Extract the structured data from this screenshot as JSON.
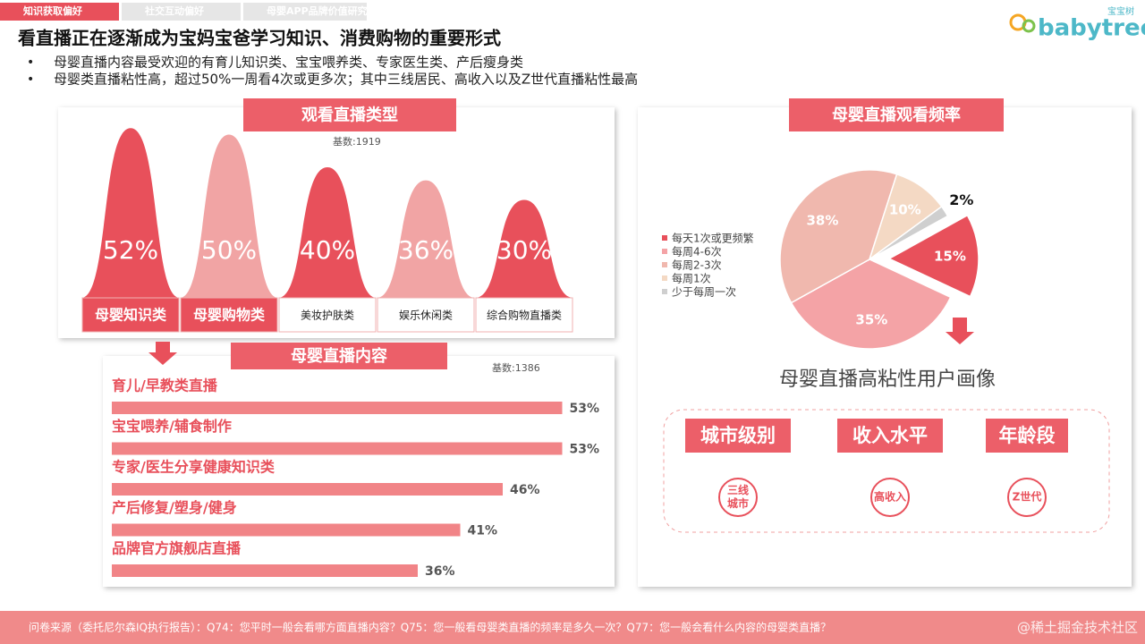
{
  "tabs": [
    "知识获取偏好",
    "社交互动偏好",
    "母婴APP品牌价值研究"
  ],
  "logo": {
    "cn": "宝宝树",
    "en": "babytree"
  },
  "title": "看直播正在逐渐成为宝妈宝爸学习知识、消费购物的重要形式",
  "bullets": [
    "母婴直播内容最受欢迎的有育儿知识类、宝宝喂养类、专家医生类、产后瘦身类",
    "母婴类直播粘性高，超过50%一周看4次或更多次；其中三线居民、高收入以及Z世代直播粘性最高"
  ],
  "chart_data": [
    {
      "type": "bar",
      "title": "观看直播类型",
      "subtitle": "基数:1919",
      "categories": [
        "母婴知识类",
        "母婴购物类",
        "美妆护肤类",
        "娱乐休闲类",
        "综合购物直播类"
      ],
      "values": [
        52,
        50,
        40,
        36,
        30
      ],
      "value_labels": [
        "52%",
        "50%",
        "40%",
        "36%",
        "30%"
      ],
      "colors": [
        "#e8505b",
        "#f1a4a4",
        "#e8505b",
        "#f1a4a4",
        "#e8505b"
      ]
    },
    {
      "type": "bar",
      "orientation": "horizontal",
      "title": "母婴直播内容",
      "subtitle": "基数:1386",
      "categories": [
        "育儿/早教类直播",
        "宝宝喂养/辅食制作",
        "专家/医生分享健康知识类",
        "产后修复/塑身/健身",
        "品牌官方旗舰店直播"
      ],
      "values": [
        53,
        53,
        46,
        41,
        36
      ],
      "value_labels": [
        "53%",
        "53%",
        "46%",
        "41%",
        "36%"
      ],
      "color": "#ee6f72"
    },
    {
      "type": "pie",
      "title": "母婴直播观看频率",
      "categories": [
        "每天1次或更频繁",
        "每周4-6次",
        "每周2-3次",
        "每周1次",
        "少于每周一次"
      ],
      "values": [
        15,
        35,
        38,
        10,
        2
      ],
      "value_labels": [
        "15%",
        "35%",
        "38%",
        "10%",
        "2%"
      ],
      "colors": [
        "#e8505b",
        "#f4a3a6",
        "#f0b8ae",
        "#f4d9c4",
        "#cfcfcf"
      ]
    }
  ],
  "persona": {
    "title": "母婴直播高粘性用户画像",
    "items": [
      {
        "label": "城市级别",
        "icon": [
          "三线",
          "城市"
        ]
      },
      {
        "label": "收入水平",
        "icon": [
          "高收入"
        ]
      },
      {
        "label": "年龄段",
        "icon": [
          "Z世代"
        ]
      }
    ]
  },
  "footer": "问卷来源（委托尼尔森IQ执行报告）：Q74：您平时一般会看哪方面直播内容？Q75：您一般看母婴类直播的频率是多久一次？Q77：您一般会看什么内容的母婴类直播？",
  "watermark": "@稀土掘金技术社区"
}
